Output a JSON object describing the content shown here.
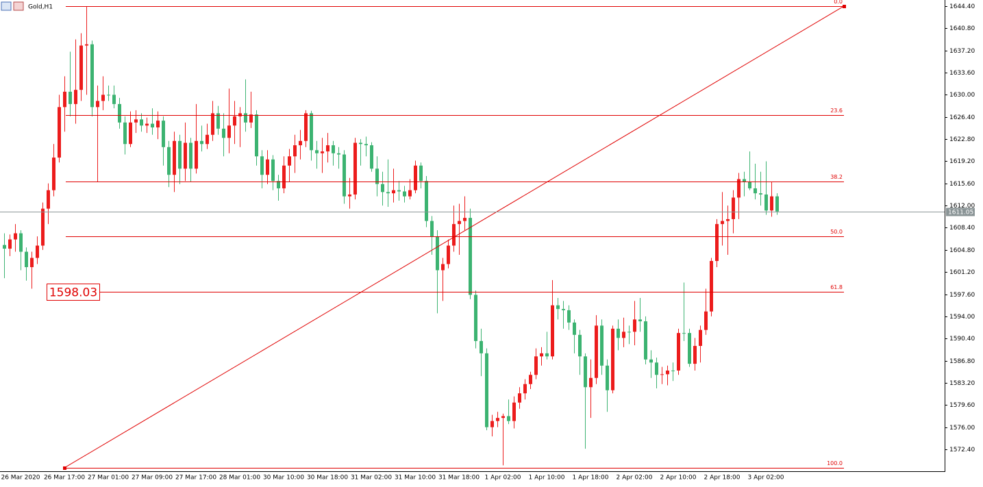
{
  "chart_data": {
    "type": "candlestick",
    "title": "Gold,H1",
    "up_color": "#ec1c1c",
    "down_color": "#3cb371",
    "fib_color": "#e00000",
    "current_color": "#8a9496",
    "ylim": [
      1568.84,
      1645.4
    ],
    "yticks": [
      {
        "value": 1644.4,
        "label": "1644.40"
      },
      {
        "value": 1640.8,
        "label": "1640.80"
      },
      {
        "value": 1637.2,
        "label": "1637.20"
      },
      {
        "value": 1633.6,
        "label": "1633.60"
      },
      {
        "value": 1630,
        "label": "1630.00"
      },
      {
        "value": 1626.4,
        "label": "1626.40"
      },
      {
        "value": 1622.8,
        "label": "1622.80"
      },
      {
        "value": 1619.2,
        "label": "1619.20"
      },
      {
        "value": 1615.6,
        "label": "1615.60"
      },
      {
        "value": 1612,
        "label": "1612.00"
      },
      {
        "value": 1608.4,
        "label": "1608.40"
      },
      {
        "value": 1604.8,
        "label": "1604.80"
      },
      {
        "value": 1601.2,
        "label": "1601.20"
      },
      {
        "value": 1597.6,
        "label": "1597.60"
      },
      {
        "value": 1594,
        "label": "1594.00"
      },
      {
        "value": 1590.4,
        "label": "1590.40"
      },
      {
        "value": 1586.8,
        "label": "1586.80"
      },
      {
        "value": 1583.2,
        "label": "1583.20"
      },
      {
        "value": 1579.6,
        "label": "1579.60"
      },
      {
        "value": 1576,
        "label": "1576.00"
      },
      {
        "value": 1572.4,
        "label": "1572.40"
      }
    ],
    "categories": [
      null,
      null,
      null,
      "26 Mar 2020",
      null,
      null,
      null,
      null,
      null,
      null,
      null,
      "26 Mar 17:00",
      null,
      null,
      null,
      null,
      null,
      null,
      null,
      "27 Mar 01:00",
      null,
      null,
      null,
      null,
      null,
      null,
      null,
      "27 Mar 09:00",
      null,
      null,
      null,
      null,
      null,
      null,
      null,
      "27 Mar 17:00",
      null,
      null,
      null,
      null,
      null,
      null,
      null,
      "28 Mar 01:00",
      null,
      null,
      null,
      null,
      null,
      null,
      null,
      "30 Mar 10:00",
      null,
      null,
      null,
      null,
      null,
      null,
      null,
      "30 Mar 18:00",
      null,
      null,
      null,
      null,
      null,
      null,
      null,
      "31 Mar 02:00",
      null,
      null,
      null,
      null,
      null,
      null,
      null,
      "31 Mar 10:00",
      null,
      null,
      null,
      null,
      null,
      null,
      null,
      "31 Mar 18:00",
      null,
      null,
      null,
      null,
      null,
      null,
      null,
      "1 Apr 02:00",
      null,
      null,
      null,
      null,
      null,
      null,
      null,
      "1 Apr 10:00",
      null,
      null,
      null,
      null,
      null,
      null,
      null,
      "1 Apr 18:00",
      null,
      null,
      null,
      null,
      null,
      null,
      null,
      "2 Apr 02:00",
      null,
      null,
      null,
      null,
      null,
      null,
      null,
      "2 Apr 10:00",
      null,
      null,
      null,
      null,
      null,
      null,
      null,
      "2 Apr 18:00",
      null,
      null,
      null,
      null,
      null,
      null,
      null,
      "3 Apr 02:00",
      null,
      null
    ],
    "ohlc": [
      [
        1605.6,
        1607.5,
        1600.2,
        1605.0
      ],
      [
        1605.0,
        1607.3,
        1603.8,
        1606.5
      ],
      [
        1606.5,
        1609.0,
        1604.5,
        1607.5
      ],
      [
        1607.5,
        1608.0,
        1601.5,
        1604.5
      ],
      [
        1604.5,
        1605.2,
        1599.8,
        1602.0
      ],
      [
        1602.0,
        1604.5,
        1598.5,
        1603.5
      ],
      [
        1603.5,
        1607.0,
        1602.5,
        1605.5
      ],
      [
        1605.5,
        1612.5,
        1604.8,
        1611.5
      ],
      [
        1611.5,
        1615.6,
        1609.0,
        1614.5
      ],
      [
        1614.5,
        1622.0,
        1613.5,
        1619.8
      ],
      [
        1619.8,
        1630.0,
        1619.0,
        1628.0
      ],
      [
        1628.0,
        1633.0,
        1624.0,
        1630.5
      ],
      [
        1630.5,
        1637.0,
        1626.5,
        1628.5
      ],
      [
        1628.5,
        1639.0,
        1625.3,
        1630.8
      ],
      [
        1630.8,
        1640.0,
        1629.0,
        1638.0
      ],
      [
        1638.0,
        1644.4,
        1630.0,
        1638.2
      ],
      [
        1638.2,
        1638.8,
        1626.5,
        1628.0
      ],
      [
        1628.0,
        1631.5,
        1615.9,
        1629.0
      ],
      [
        1629.0,
        1633.0,
        1627.5,
        1630.0
      ],
      [
        1630.0,
        1631.5,
        1629.0,
        1630.0
      ],
      [
        1630.0,
        1631.5,
        1627.8,
        1628.5
      ],
      [
        1628.5,
        1629.5,
        1624.5,
        1625.5
      ],
      [
        1625.5,
        1626.5,
        1620.3,
        1622.0
      ],
      [
        1622.0,
        1627.3,
        1621.5,
        1625.5
      ],
      [
        1625.5,
        1627.5,
        1623.8,
        1626.0
      ],
      [
        1626.0,
        1627.0,
        1624.0,
        1625.0
      ],
      [
        1625.0,
        1626.3,
        1623.8,
        1625.3
      ],
      [
        1625.3,
        1627.8,
        1623.5,
        1624.7
      ],
      [
        1624.7,
        1627.3,
        1622.8,
        1625.8
      ],
      [
        1625.8,
        1626.5,
        1618.5,
        1621.5
      ],
      [
        1621.5,
        1622.5,
        1615.0,
        1617.0
      ],
      [
        1617.0,
        1624.0,
        1614.2,
        1622.5
      ],
      [
        1622.5,
        1623.5,
        1615.5,
        1618.0
      ],
      [
        1618.0,
        1625.5,
        1616.0,
        1622.2
      ],
      [
        1622.2,
        1623.0,
        1615.8,
        1618.0
      ],
      [
        1618.0,
        1628.5,
        1617.2,
        1622.5
      ],
      [
        1622.5,
        1625.0,
        1620.8,
        1622.0
      ],
      [
        1622.0,
        1625.3,
        1621.2,
        1623.5
      ],
      [
        1623.5,
        1629.0,
        1622.5,
        1627.0
      ],
      [
        1627.0,
        1628.2,
        1623.5,
        1624.5
      ],
      [
        1624.5,
        1627.0,
        1620.0,
        1623.0
      ],
      [
        1623.0,
        1631.0,
        1620.5,
        1625.0
      ],
      [
        1625.0,
        1629.0,
        1622.0,
        1626.5
      ],
      [
        1626.5,
        1628.0,
        1621.5,
        1627.0
      ],
      [
        1627.0,
        1632.5,
        1624.0,
        1625.5
      ],
      [
        1625.5,
        1630.5,
        1624.6,
        1626.8
      ],
      [
        1626.8,
        1627.5,
        1618.5,
        1620.0
      ],
      [
        1620.0,
        1621.0,
        1614.8,
        1617.0
      ],
      [
        1617.0,
        1621.0,
        1615.5,
        1619.5
      ],
      [
        1619.5,
        1620.2,
        1614.5,
        1616.0
      ],
      [
        1616.0,
        1617.0,
        1612.8,
        1614.8
      ],
      [
        1614.8,
        1620.0,
        1614.0,
        1618.5
      ],
      [
        1618.5,
        1621.2,
        1615.8,
        1620.0
      ],
      [
        1620.0,
        1623.5,
        1617.3,
        1621.8
      ],
      [
        1621.8,
        1624.3,
        1619.5,
        1622.5
      ],
      [
        1622.5,
        1627.5,
        1621.5,
        1627.0
      ],
      [
        1627.0,
        1627.4,
        1619.3,
        1621.0
      ],
      [
        1621.0,
        1622.5,
        1618.0,
        1620.5
      ],
      [
        1620.5,
        1623.0,
        1617.3,
        1620.8
      ],
      [
        1620.8,
        1623.8,
        1619.0,
        1621.8
      ],
      [
        1621.8,
        1622.5,
        1618.5,
        1620.5
      ],
      [
        1620.5,
        1621.5,
        1618.0,
        1620.3
      ],
      [
        1620.3,
        1621.0,
        1612.3,
        1613.5
      ],
      [
        1613.5,
        1616.5,
        1611.5,
        1613.8
      ],
      [
        1613.8,
        1623.0,
        1613.0,
        1622.2
      ],
      [
        1622.2,
        1622.8,
        1618.5,
        1622.0
      ],
      [
        1622.0,
        1623.2,
        1620.0,
        1621.8
      ],
      [
        1621.8,
        1622.3,
        1617.5,
        1618.0
      ],
      [
        1618.0,
        1620.0,
        1613.5,
        1615.5
      ],
      [
        1615.5,
        1617.5,
        1612.0,
        1614.2
      ],
      [
        1614.2,
        1619.5,
        1611.8,
        1614.0
      ],
      [
        1614.0,
        1618.0,
        1612.5,
        1614.5
      ],
      [
        1614.5,
        1616.0,
        1612.8,
        1614.3
      ],
      [
        1614.3,
        1615.2,
        1612.5,
        1613.5
      ],
      [
        1613.5,
        1616.3,
        1613.0,
        1614.5
      ],
      [
        1614.5,
        1619.3,
        1614.0,
        1618.5
      ],
      [
        1618.5,
        1619.0,
        1614.8,
        1616.0
      ],
      [
        1616.0,
        1616.8,
        1608.5,
        1609.5
      ],
      [
        1609.5,
        1610.3,
        1604.0,
        1607.0
      ],
      [
        1607.0,
        1608.0,
        1594.5,
        1601.5
      ],
      [
        1601.5,
        1603.5,
        1596.5,
        1602.5
      ],
      [
        1602.5,
        1606.5,
        1601.8,
        1605.5
      ],
      [
        1605.5,
        1612.0,
        1604.5,
        1609.0
      ],
      [
        1609.0,
        1612.3,
        1604.0,
        1609.5
      ],
      [
        1609.5,
        1613.5,
        1608.0,
        1610.0
      ],
      [
        1610.0,
        1611.5,
        1596.8,
        1597.5
      ],
      [
        1597.5,
        1598.2,
        1588.8,
        1590.0
      ],
      [
        1590.0,
        1592.0,
        1584.3,
        1588.0
      ],
      [
        1588.0,
        1588.8,
        1575.5,
        1576.0
      ],
      [
        1576.0,
        1578.0,
        1574.5,
        1577.0
      ],
      [
        1577.0,
        1578.5,
        1576.0,
        1577.5
      ],
      [
        1577.5,
        1578.2,
        1569.8,
        1577.8
      ],
      [
        1577.8,
        1580.5,
        1576.5,
        1577.0
      ],
      [
        1577.0,
        1581.0,
        1575.8,
        1580.0
      ],
      [
        1580.0,
        1582.5,
        1579.0,
        1581.5
      ],
      [
        1581.5,
        1583.8,
        1580.5,
        1583.0
      ],
      [
        1583.0,
        1585.0,
        1582.2,
        1584.5
      ],
      [
        1584.5,
        1588.8,
        1583.8,
        1587.5
      ],
      [
        1587.5,
        1589.0,
        1586.0,
        1588.0
      ],
      [
        1588.0,
        1591.5,
        1587.0,
        1587.5
      ],
      [
        1587.5,
        1599.9,
        1587.0,
        1595.8
      ],
      [
        1595.8,
        1597.0,
        1593.5,
        1595.2
      ],
      [
        1595.2,
        1596.5,
        1592.0,
        1595.0
      ],
      [
        1595.0,
        1595.8,
        1591.8,
        1593.0
      ],
      [
        1593.0,
        1593.5,
        1588.0,
        1591.0
      ],
      [
        1591.0,
        1591.8,
        1584.5,
        1587.5
      ],
      [
        1587.5,
        1588.0,
        1572.5,
        1582.5
      ],
      [
        1582.5,
        1587.0,
        1577.5,
        1584.0
      ],
      [
        1584.0,
        1594.2,
        1583.0,
        1592.5
      ],
      [
        1592.5,
        1593.5,
        1584.5,
        1586.0
      ],
      [
        1586.0,
        1587.0,
        1578.5,
        1582.0
      ],
      [
        1582.0,
        1592.5,
        1581.5,
        1592.0
      ],
      [
        1592.0,
        1593.5,
        1588.5,
        1590.5
      ],
      [
        1590.5,
        1593.8,
        1589.0,
        1591.5
      ],
      [
        1591.5,
        1592.5,
        1589.5,
        1591.5
      ],
      [
        1591.5,
        1596.5,
        1589.3,
        1593.5
      ],
      [
        1593.5,
        1597.0,
        1591.5,
        1593.2
      ],
      [
        1593.2,
        1594.0,
        1586.2,
        1587.0
      ],
      [
        1587.0,
        1588.5,
        1584.0,
        1586.5
      ],
      [
        1586.5,
        1587.3,
        1582.3,
        1584.5
      ],
      [
        1584.5,
        1585.8,
        1583.0,
        1584.6
      ],
      [
        1584.6,
        1586.0,
        1582.8,
        1585.2
      ],
      [
        1585.2,
        1586.5,
        1583.5,
        1585.2
      ],
      [
        1585.2,
        1592.0,
        1584.5,
        1591.3
      ],
      [
        1591.3,
        1599.5,
        1590.0,
        1591.3
      ],
      [
        1591.3,
        1592.0,
        1585.8,
        1586.3
      ],
      [
        1586.3,
        1590.5,
        1585.2,
        1589.2
      ],
      [
        1589.2,
        1592.5,
        1586.5,
        1591.8
      ],
      [
        1591.8,
        1598.5,
        1591.0,
        1594.8
      ],
      [
        1594.8,
        1603.5,
        1594.0,
        1603.0
      ],
      [
        1603.0,
        1609.8,
        1602.0,
        1609.0
      ],
      [
        1609.0,
        1614.2,
        1605.5,
        1609.5
      ],
      [
        1609.5,
        1612.0,
        1604.0,
        1609.8
      ],
      [
        1609.8,
        1614.5,
        1607.5,
        1613.3
      ],
      [
        1613.3,
        1617.3,
        1609.8,
        1616.3
      ],
      [
        1616.3,
        1617.5,
        1613.5,
        1615.8
      ],
      [
        1615.8,
        1620.8,
        1614.5,
        1614.8
      ],
      [
        1614.8,
        1618.8,
        1613.0,
        1614.0
      ],
      [
        1614.0,
        1617.5,
        1612.0,
        1613.8
      ],
      [
        1613.8,
        1619.2,
        1610.5,
        1611.2
      ],
      [
        1611.2,
        1615.8,
        1610.2,
        1613.5
      ],
      [
        1613.5,
        1614.0,
        1610.5,
        1611.05
      ]
    ],
    "fib_levels": [
      {
        "label": "0.0",
        "value": 1644.4
      },
      {
        "label": "23.6",
        "value": 1626.7
      },
      {
        "label": "38.2",
        "value": 1615.9
      },
      {
        "label": "50.0",
        "value": 1607.0
      },
      {
        "label": "61.8",
        "value": 1598.03
      },
      {
        "label": "100.0",
        "value": 1569.4
      }
    ],
    "marked_price": 1598.03,
    "current_price": 1611.05
  }
}
